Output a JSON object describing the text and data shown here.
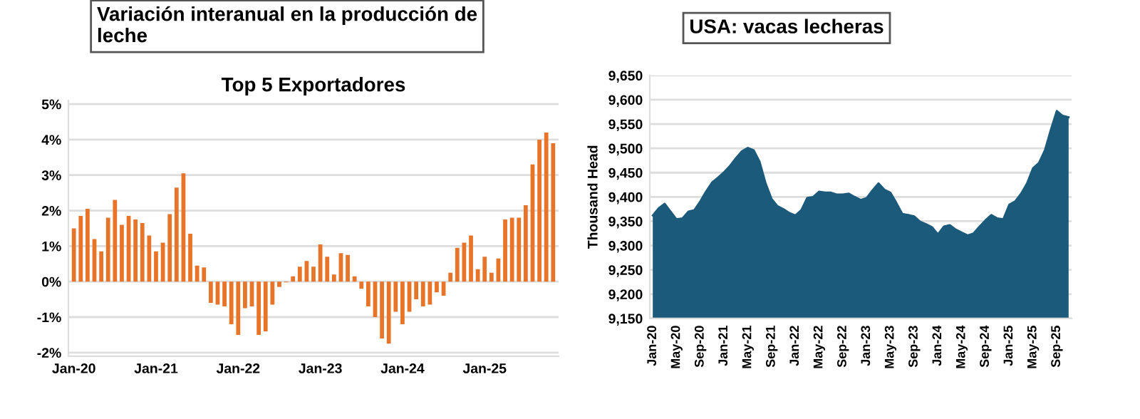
{
  "chart_data": [
    {
      "type": "bar",
      "title": "Variación interanual en la producción de leche",
      "subtitle": "Top 5 Exportadores",
      "categories": [
        "Jan-20",
        null,
        null,
        null,
        null,
        null,
        null,
        null,
        null,
        null,
        null,
        null,
        "Jan-21",
        null,
        null,
        null,
        null,
        null,
        null,
        null,
        null,
        null,
        null,
        null,
        "Jan-22",
        null,
        null,
        null,
        null,
        null,
        null,
        null,
        null,
        null,
        null,
        null,
        "Jan-23",
        null,
        null,
        null,
        null,
        null,
        null,
        null,
        null,
        null,
        null,
        null,
        "Jan-24",
        null,
        null,
        null,
        null,
        null,
        null,
        null,
        null,
        null,
        null,
        null,
        "Jan-25",
        null,
        null,
        null,
        null,
        null,
        null,
        null,
        null,
        null,
        null
      ],
      "values": [
        1.5,
        1.85,
        2.05,
        1.2,
        0.85,
        1.8,
        2.3,
        1.6,
        1.85,
        1.75,
        1.65,
        1.3,
        0.85,
        1.1,
        1.9,
        2.65,
        3.05,
        1.35,
        0.45,
        0.4,
        -0.6,
        -0.65,
        -0.7,
        -1.2,
        -1.5,
        -0.75,
        -0.7,
        -1.5,
        -1.4,
        -0.65,
        -0.15,
        -0.02,
        0.15,
        0.42,
        0.58,
        0.42,
        1.05,
        0.7,
        0.2,
        0.8,
        0.75,
        0.15,
        -0.2,
        -0.7,
        -1.0,
        -1.6,
        -1.75,
        -0.85,
        -1.2,
        -0.85,
        -0.5,
        -0.7,
        -0.65,
        -0.3,
        -0.4,
        0.25,
        0.95,
        1.1,
        1.3,
        0.35,
        0.7,
        0.25,
        0.65,
        1.75,
        1.8,
        1.8,
        2.15,
        3.3,
        4.0,
        4.2,
        3.9
      ],
      "color": "#e8742a",
      "ylim": [
        -2.1,
        5.1
      ],
      "yticks": [
        {
          "value": -2,
          "label": "-2%"
        },
        {
          "value": -1,
          "label": "-1%"
        },
        {
          "value": 0,
          "label": "0%"
        },
        {
          "value": 1,
          "label": "1%"
        },
        {
          "value": 2,
          "label": "2%"
        },
        {
          "value": 3,
          "label": "3%"
        },
        {
          "value": 4,
          "label": "4%"
        },
        {
          "value": 5,
          "label": "5%"
        }
      ],
      "grid": "y"
    },
    {
      "type": "area",
      "title": "USA: vacas lecheras",
      "ylabel": "Thousand Head",
      "categories": [
        "Jan-20",
        null,
        null,
        null,
        "May-20",
        null,
        null,
        null,
        "Sep-20",
        null,
        null,
        null,
        "Jan-21",
        null,
        null,
        null,
        "May-21",
        null,
        null,
        null,
        "Sep-21",
        null,
        null,
        null,
        "Jan-22",
        null,
        null,
        null,
        "May-22",
        null,
        null,
        null,
        "Sep-22",
        null,
        null,
        null,
        "Jan-23",
        null,
        null,
        null,
        "May-23",
        null,
        null,
        null,
        "Sep-23",
        null,
        null,
        null,
        "Jan-24",
        null,
        null,
        null,
        "May-24",
        null,
        null,
        null,
        "Sep-24",
        null,
        null,
        null,
        "Jan-25",
        null,
        null,
        null,
        "May-25",
        null,
        null,
        null,
        "Sep-25",
        null,
        null
      ],
      "values": [
        9362,
        9377,
        9386,
        9370,
        9354,
        9356,
        9370,
        9373,
        9391,
        9412,
        9430,
        9440,
        9451,
        9464,
        9480,
        9494,
        9501,
        9496,
        9472,
        9428,
        9396,
        9381,
        9375,
        9367,
        9362,
        9373,
        9398,
        9400,
        9411,
        9409,
        9409,
        9405,
        9405,
        9407,
        9400,
        9394,
        9398,
        9414,
        9428,
        9415,
        9409,
        9388,
        9365,
        9363,
        9360,
        9349,
        9344,
        9338,
        9323,
        9339,
        9342,
        9333,
        9327,
        9321,
        9325,
        9339,
        9352,
        9363,
        9356,
        9354,
        9384,
        9391,
        9407,
        9428,
        9459,
        9470,
        9496,
        9538,
        9577,
        9567,
        9564
      ],
      "color": "#1b5a7a",
      "ylim": [
        9150,
        9650
      ],
      "yticks": [
        {
          "value": 9150,
          "label": "9,150"
        },
        {
          "value": 9200,
          "label": "9,200"
        },
        {
          "value": 9250,
          "label": "9,250"
        },
        {
          "value": 9300,
          "label": "9,300"
        },
        {
          "value": 9350,
          "label": "9,350"
        },
        {
          "value": 9400,
          "label": "9,400"
        },
        {
          "value": 9450,
          "label": "9,450"
        },
        {
          "value": 9500,
          "label": "9,500"
        },
        {
          "value": 9550,
          "label": "9,550"
        },
        {
          "value": 9600,
          "label": "9,600"
        },
        {
          "value": 9650,
          "label": "9,650"
        }
      ],
      "grid": "y"
    }
  ]
}
